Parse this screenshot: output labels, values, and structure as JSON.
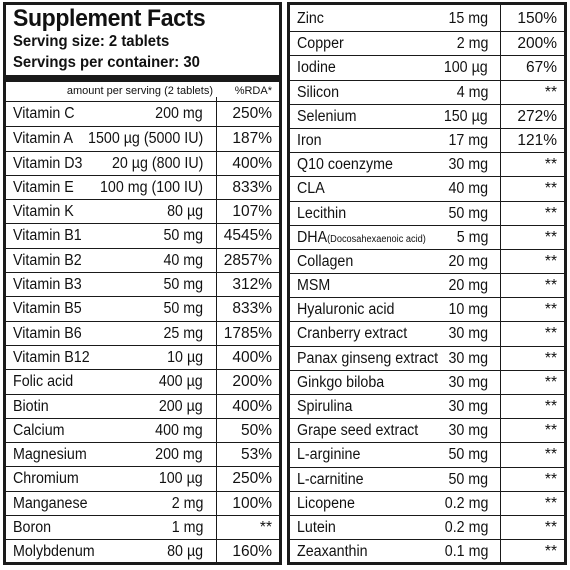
{
  "header": {
    "title": "Supplement Facts",
    "serving_size": "Serving size: 2 tablets",
    "servings_per_container": "Servings per container: 30",
    "col_amount": "amount per serving (2 tablets)",
    "col_rda": "%RDA*"
  },
  "left_rows": [
    {
      "name": "Vitamin C",
      "amount": "200 mg",
      "rda": "250%"
    },
    {
      "name": "Vitamin A",
      "amount": "1500 µg (5000 IU)",
      "rda": "187%"
    },
    {
      "name": "Vitamin D3",
      "amount": "20 µg (800 IU)",
      "rda": "400%"
    },
    {
      "name": "Vitamin E",
      "amount": "100 mg (100 IU)",
      "rda": "833%"
    },
    {
      "name": "Vitamin K",
      "amount": "80 µg",
      "rda": "107%"
    },
    {
      "name": "Vitamin B1",
      "amount": "50 mg",
      "rda": "4545%"
    },
    {
      "name": "Vitamin B2",
      "amount": "40 mg",
      "rda": "2857%"
    },
    {
      "name": "Vitamin B3",
      "amount": "50 mg",
      "rda": "312%"
    },
    {
      "name": "Vitamin B5",
      "amount": "50 mg",
      "rda": "833%"
    },
    {
      "name": "Vitamin B6",
      "amount": "25 mg",
      "rda": "1785%"
    },
    {
      "name": "Vitamin B12",
      "amount": "10 µg",
      "rda": "400%"
    },
    {
      "name": "Folic acid",
      "amount": "400 µg",
      "rda": "200%"
    },
    {
      "name": "Biotin",
      "amount": "200 µg",
      "rda": "400%"
    },
    {
      "name": "Calcium",
      "amount": "400 mg",
      "rda": "50%"
    },
    {
      "name": "Magnesium",
      "amount": "200 mg",
      "rda": "53%"
    },
    {
      "name": "Chromium",
      "amount": "100 µg",
      "rda": "250%"
    },
    {
      "name": "Manganese",
      "amount": "2 mg",
      "rda": "100%"
    },
    {
      "name": "Boron",
      "amount": "1 mg",
      "rda": "**"
    },
    {
      "name": "Molybdenum",
      "amount": "80 µg",
      "rda": "160%"
    }
  ],
  "right_rows": [
    {
      "name": "Zinc",
      "amount": "15 mg",
      "rda": "150%"
    },
    {
      "name": "Copper",
      "amount": "2 mg",
      "rda": "200%"
    },
    {
      "name": "Iodine",
      "amount": "100 µg",
      "rda": "67%"
    },
    {
      "name": "Silicon",
      "amount": "4 mg",
      "rda": "**"
    },
    {
      "name": "Selenium",
      "amount": "150 µg",
      "rda": "272%"
    },
    {
      "name": "Iron",
      "amount": "17 mg",
      "rda": "121%"
    },
    {
      "name": "Q10 coenzyme",
      "amount": "30 mg",
      "rda": "**"
    },
    {
      "name": "CLA",
      "amount": "40 mg",
      "rda": "**"
    },
    {
      "name": "Lecithin",
      "amount": "50 mg",
      "rda": "**"
    },
    {
      "name": "DHA",
      "name_suffix": "(Docosahexaenoic acid)",
      "amount": "5 mg",
      "rda": "**"
    },
    {
      "name": "Collagen",
      "amount": "20 mg",
      "rda": "**"
    },
    {
      "name": "MSM",
      "amount": "20 mg",
      "rda": "**"
    },
    {
      "name": "Hyaluronic acid",
      "amount": "10 mg",
      "rda": "**"
    },
    {
      "name": "Cranberry extract",
      "amount": "30 mg",
      "rda": "**"
    },
    {
      "name": "Panax ginseng extract",
      "amount": "30 mg",
      "rda": "**"
    },
    {
      "name": "Ginkgo biloba",
      "amount": "30 mg",
      "rda": "**"
    },
    {
      "name": "Spirulina",
      "amount": "30 mg",
      "rda": "**"
    },
    {
      "name": "Grape seed extract",
      "amount": "30 mg",
      "rda": "**"
    },
    {
      "name": "L-arginine",
      "amount": "50 mg",
      "rda": "**"
    },
    {
      "name": "L-carnitine",
      "amount": "50 mg",
      "rda": "**"
    },
    {
      "name": "Licopene",
      "amount": "0.2 mg",
      "rda": "**"
    },
    {
      "name": "Lutein",
      "amount": "0.2 mg",
      "rda": "**"
    },
    {
      "name": "Zeaxanthin",
      "amount": "0.1 mg",
      "rda": "**"
    }
  ]
}
